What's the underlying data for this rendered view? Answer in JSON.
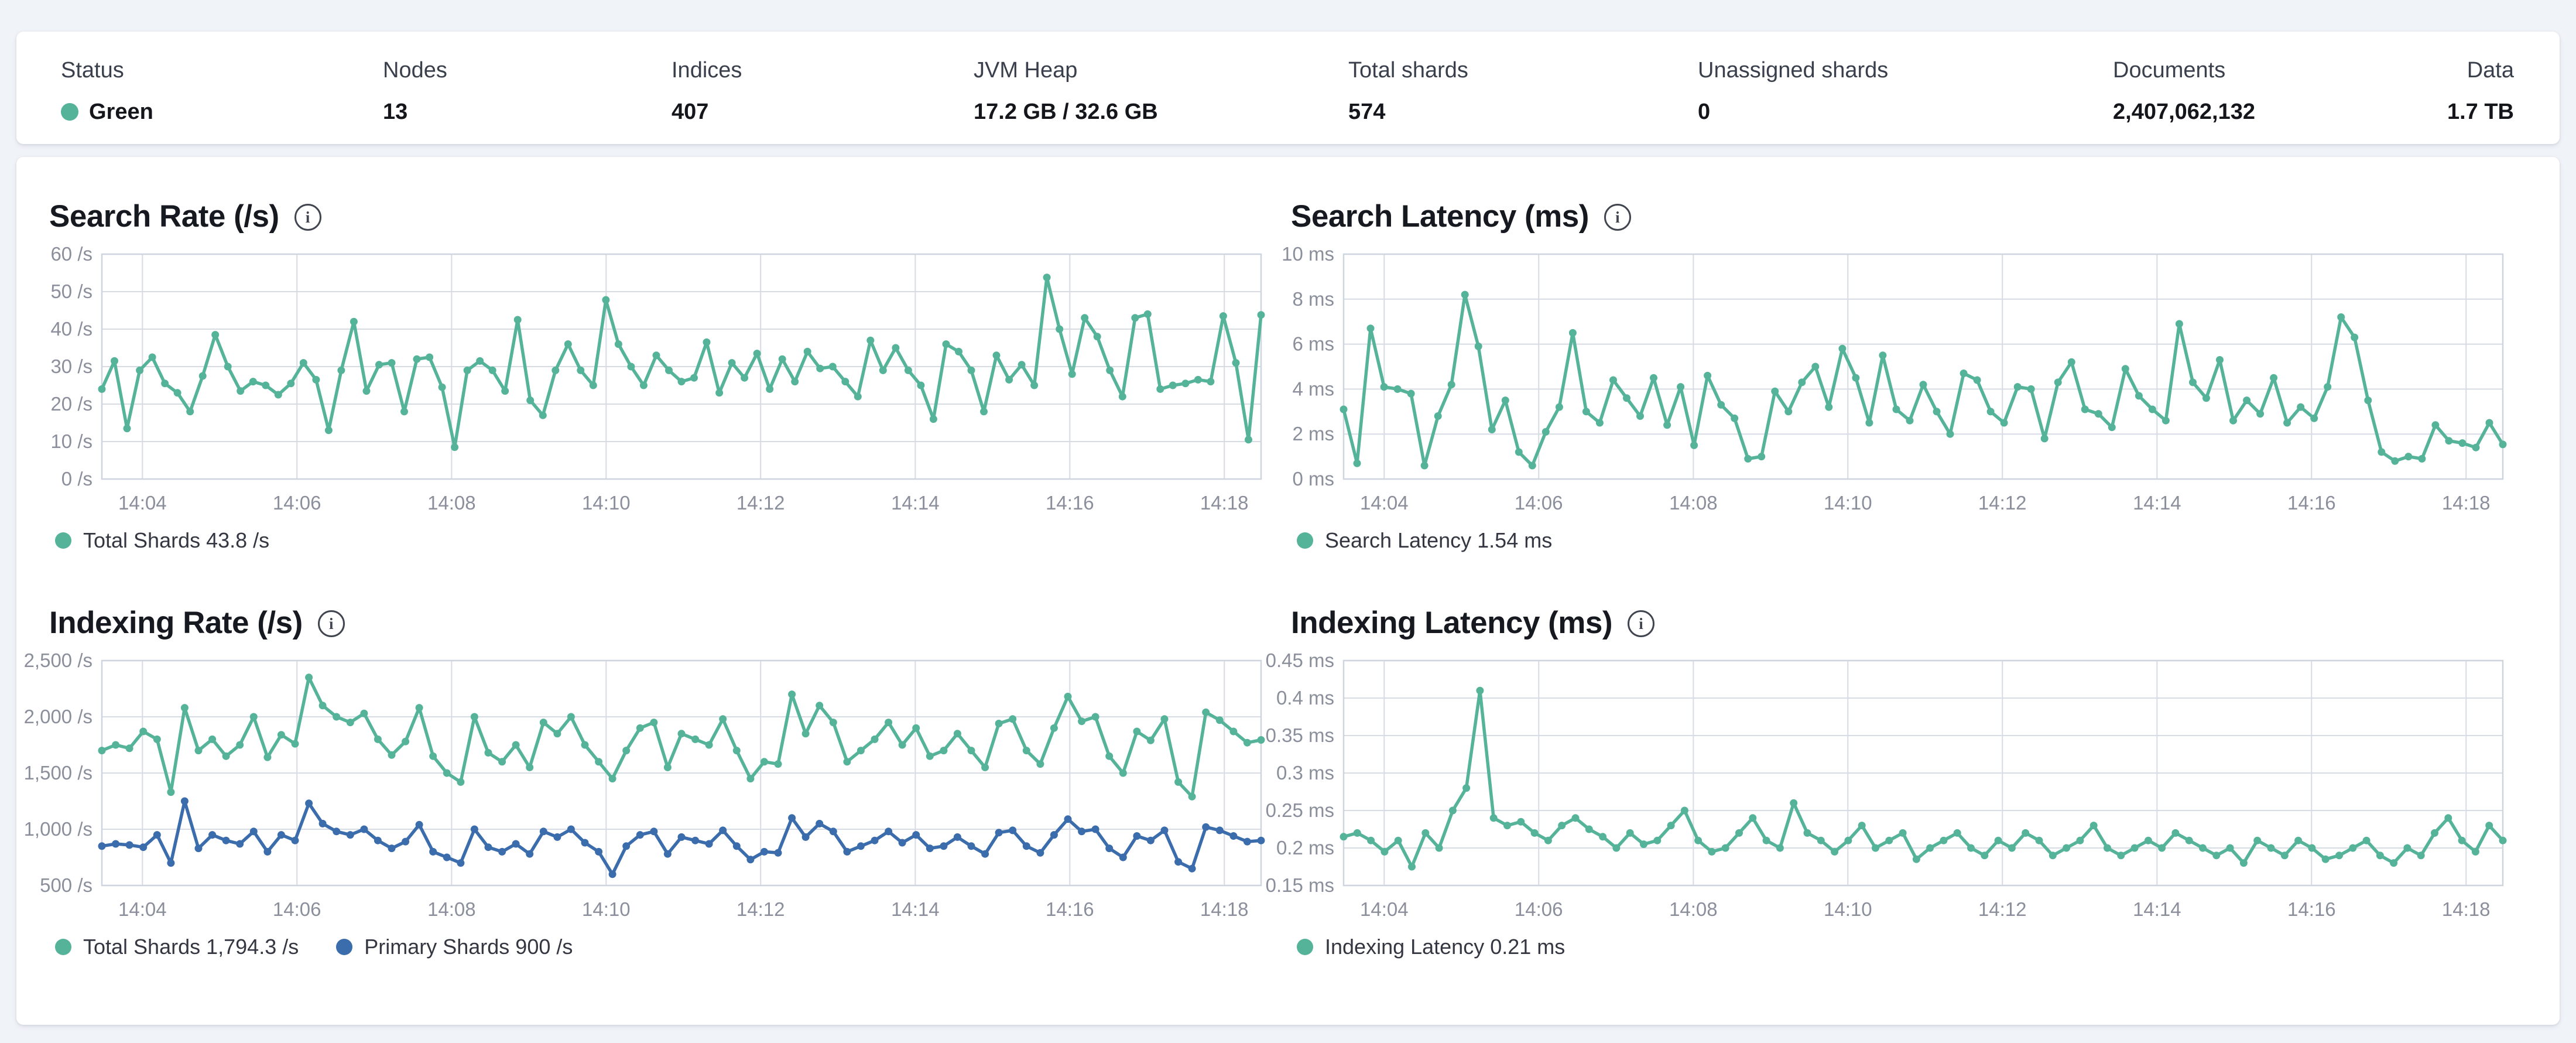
{
  "colors": {
    "health_green": "#54b399",
    "series_teal": "#54b399",
    "series_blue": "#3b6cac",
    "grid": "#d6dbe4",
    "page_background": "#f0f3f8"
  },
  "status_bar": {
    "items": [
      {
        "label": "Status",
        "value": "Green",
        "type": "health"
      },
      {
        "label": "Nodes",
        "value": "13"
      },
      {
        "label": "Indices",
        "value": "407"
      },
      {
        "label": "JVM Heap",
        "value": "17.2 GB / 32.6 GB"
      },
      {
        "label": "Total shards",
        "value": "574"
      },
      {
        "label": "Unassigned shards",
        "value": "0"
      },
      {
        "label": "Documents",
        "value": "2,407,062,132"
      },
      {
        "label": "Data",
        "value": "1.7 TB"
      }
    ]
  },
  "chart_data": [
    {
      "type": "line",
      "title": "Search Rate (/s)",
      "ylabel": "/s",
      "ylim": [
        0,
        60
      ],
      "grid": true,
      "legend_position": "bottom",
      "yticks": [
        {
          "v": 0,
          "label": "0 /s"
        },
        {
          "v": 10,
          "label": "10 /s"
        },
        {
          "v": 20,
          "label": "20 /s"
        },
        {
          "v": 30,
          "label": "30 /s"
        },
        {
          "v": 40,
          "label": "40 /s"
        },
        {
          "v": 50,
          "label": "50 /s"
        },
        {
          "v": 60,
          "label": "60 /s"
        }
      ],
      "xticks": [
        {
          "f": 0.035,
          "label": "14:04"
        },
        {
          "f": 0.1683,
          "label": "14:06"
        },
        {
          "f": 0.3017,
          "label": "14:08"
        },
        {
          "f": 0.435,
          "label": "14:10"
        },
        {
          "f": 0.5683,
          "label": "14:12"
        },
        {
          "f": 0.7017,
          "label": "14:14"
        },
        {
          "f": 0.835,
          "label": "14:16"
        },
        {
          "f": 0.9683,
          "label": "14:18"
        }
      ],
      "series": [
        {
          "name": "Total Shards",
          "legend": "Total Shards 43.8 /s",
          "color": "#54b399",
          "values": [
            24,
            31.5,
            13.5,
            29,
            32.5,
            25.5,
            23,
            18,
            27.5,
            38.5,
            30,
            23.5,
            26,
            25,
            22.5,
            25.5,
            31,
            26.5,
            13,
            29,
            42,
            23.5,
            30.5,
            31,
            18,
            32,
            32.5,
            24.5,
            8.5,
            29,
            31.5,
            29,
            23.5,
            42.5,
            21,
            17,
            29,
            36,
            29,
            25,
            47.8,
            36,
            30,
            25,
            33,
            29,
            26,
            27,
            36.5,
            23,
            31,
            27,
            33.5,
            24,
            32,
            26,
            34,
            29.5,
            30,
            26,
            22,
            37,
            29,
            35,
            29,
            25,
            16,
            36,
            34,
            29,
            18,
            33,
            26.5,
            30.5,
            25,
            53.8,
            40,
            28,
            43,
            38,
            29,
            22,
            43,
            44,
            24,
            25,
            25.5,
            26.5,
            26,
            43.5,
            31,
            10.5,
            43.8
          ]
        }
      ]
    },
    {
      "type": "line",
      "title": "Search Latency (ms)",
      "ylabel": "ms",
      "ylim": [
        0,
        10
      ],
      "grid": true,
      "legend_position": "bottom",
      "yticks": [
        {
          "v": 0,
          "label": "0 ms"
        },
        {
          "v": 2,
          "label": "2 ms"
        },
        {
          "v": 4,
          "label": "4 ms"
        },
        {
          "v": 6,
          "label": "6 ms"
        },
        {
          "v": 8,
          "label": "8 ms"
        },
        {
          "v": 10,
          "label": "10 ms"
        }
      ],
      "xticks": [
        {
          "f": 0.035,
          "label": "14:04"
        },
        {
          "f": 0.1683,
          "label": "14:06"
        },
        {
          "f": 0.3017,
          "label": "14:08"
        },
        {
          "f": 0.435,
          "label": "14:10"
        },
        {
          "f": 0.5683,
          "label": "14:12"
        },
        {
          "f": 0.7017,
          "label": "14:14"
        },
        {
          "f": 0.835,
          "label": "14:16"
        },
        {
          "f": 0.9683,
          "label": "14:18"
        }
      ],
      "series": [
        {
          "name": "Search Latency",
          "legend": "Search Latency 1.54 ms",
          "color": "#54b399",
          "values": [
            3.1,
            0.7,
            6.7,
            4.1,
            4.0,
            3.8,
            0.6,
            2.8,
            4.2,
            8.2,
            5.9,
            2.2,
            3.5,
            1.2,
            0.6,
            2.1,
            3.2,
            6.5,
            3.0,
            2.5,
            4.4,
            3.6,
            2.8,
            4.5,
            2.4,
            4.1,
            1.5,
            4.6,
            3.3,
            2.7,
            0.9,
            1.0,
            3.9,
            3.0,
            4.3,
            5.0,
            3.2,
            5.8,
            4.5,
            2.5,
            5.5,
            3.1,
            2.6,
            4.2,
            3.0,
            2.0,
            4.7,
            4.4,
            3.0,
            2.5,
            4.1,
            4.0,
            1.8,
            4.3,
            5.2,
            3.1,
            2.9,
            2.3,
            4.9,
            3.7,
            3.1,
            2.6,
            6.9,
            4.3,
            3.6,
            5.3,
            2.6,
            3.5,
            2.9,
            4.5,
            2.5,
            3.2,
            2.7,
            4.1,
            7.2,
            6.3,
            3.5,
            1.2,
            0.8,
            1.0,
            0.9,
            2.4,
            1.7,
            1.6,
            1.4,
            2.5,
            1.54
          ]
        }
      ]
    },
    {
      "type": "line",
      "title": "Indexing Rate (/s)",
      "ylabel": "/s",
      "ylim": [
        500,
        2500
      ],
      "grid": true,
      "legend_position": "bottom",
      "yticks": [
        {
          "v": 500,
          "label": "500 /s"
        },
        {
          "v": 1000,
          "label": "1,000 /s"
        },
        {
          "v": 1500,
          "label": "1,500 /s"
        },
        {
          "v": 2000,
          "label": "2,000 /s"
        },
        {
          "v": 2500,
          "label": "2,500 /s"
        }
      ],
      "xticks": [
        {
          "f": 0.035,
          "label": "14:04"
        },
        {
          "f": 0.1683,
          "label": "14:06"
        },
        {
          "f": 0.3017,
          "label": "14:08"
        },
        {
          "f": 0.435,
          "label": "14:10"
        },
        {
          "f": 0.5683,
          "label": "14:12"
        },
        {
          "f": 0.7017,
          "label": "14:14"
        },
        {
          "f": 0.835,
          "label": "14:16"
        },
        {
          "f": 0.9683,
          "label": "14:18"
        }
      ],
      "series": [
        {
          "name": "Total Shards",
          "legend": "Total Shards 1,794.3 /s",
          "color": "#54b399",
          "values": [
            1700,
            1750,
            1720,
            1870,
            1800,
            1330,
            2080,
            1700,
            1800,
            1650,
            1750,
            2000,
            1640,
            1840,
            1760,
            2350,
            2100,
            2000,
            1950,
            2030,
            1800,
            1660,
            1780,
            2080,
            1650,
            1500,
            1420,
            2000,
            1680,
            1600,
            1750,
            1550,
            1950,
            1850,
            2000,
            1750,
            1600,
            1450,
            1700,
            1900,
            1950,
            1550,
            1850,
            1800,
            1750,
            1980,
            1700,
            1450,
            1600,
            1580,
            2200,
            1850,
            2100,
            1950,
            1600,
            1700,
            1800,
            1950,
            1750,
            1900,
            1650,
            1700,
            1850,
            1700,
            1550,
            1940,
            1980,
            1700,
            1580,
            1900,
            2180,
            1960,
            2000,
            1650,
            1500,
            1870,
            1790,
            1980,
            1420,
            1290,
            2040,
            1970,
            1870,
            1770,
            1794.3
          ]
        },
        {
          "name": "Primary Shards",
          "legend": "Primary Shards 900 /s",
          "color": "#3b6cac",
          "values": [
            850,
            870,
            860,
            840,
            950,
            700,
            1250,
            830,
            950,
            900,
            870,
            980,
            800,
            950,
            900,
            1230,
            1050,
            980,
            950,
            1000,
            900,
            830,
            890,
            1040,
            800,
            750,
            700,
            1000,
            840,
            800,
            870,
            780,
            980,
            930,
            1000,
            880,
            800,
            600,
            850,
            950,
            980,
            780,
            930,
            900,
            870,
            990,
            850,
            730,
            800,
            790,
            1100,
            930,
            1050,
            980,
            800,
            850,
            900,
            980,
            880,
            950,
            830,
            850,
            930,
            850,
            780,
            970,
            990,
            850,
            790,
            950,
            1090,
            980,
            1000,
            830,
            750,
            940,
            900,
            990,
            710,
            650,
            1020,
            990,
            940,
            890,
            900
          ]
        }
      ]
    },
    {
      "type": "line",
      "title": "Indexing Latency (ms)",
      "ylabel": "ms",
      "ylim": [
        0.15,
        0.45
      ],
      "grid": true,
      "legend_position": "bottom",
      "yticks": [
        {
          "v": 0.15,
          "label": "0.15 ms"
        },
        {
          "v": 0.2,
          "label": "0.2 ms"
        },
        {
          "v": 0.25,
          "label": "0.25 ms"
        },
        {
          "v": 0.3,
          "label": "0.3 ms"
        },
        {
          "v": 0.35,
          "label": "0.35 ms"
        },
        {
          "v": 0.4,
          "label": "0.4 ms"
        },
        {
          "v": 0.45,
          "label": "0.45 ms"
        }
      ],
      "xticks": [
        {
          "f": 0.035,
          "label": "14:04"
        },
        {
          "f": 0.1683,
          "label": "14:06"
        },
        {
          "f": 0.3017,
          "label": "14:08"
        },
        {
          "f": 0.435,
          "label": "14:10"
        },
        {
          "f": 0.5683,
          "label": "14:12"
        },
        {
          "f": 0.7017,
          "label": "14:14"
        },
        {
          "f": 0.835,
          "label": "14:16"
        },
        {
          "f": 0.9683,
          "label": "14:18"
        }
      ],
      "series": [
        {
          "name": "Indexing Latency",
          "legend": "Indexing Latency 0.21 ms",
          "color": "#54b399",
          "values": [
            0.215,
            0.22,
            0.21,
            0.195,
            0.21,
            0.175,
            0.22,
            0.2,
            0.25,
            0.28,
            0.41,
            0.24,
            0.23,
            0.235,
            0.22,
            0.21,
            0.23,
            0.24,
            0.225,
            0.215,
            0.2,
            0.22,
            0.205,
            0.21,
            0.23,
            0.25,
            0.21,
            0.195,
            0.2,
            0.22,
            0.24,
            0.21,
            0.2,
            0.26,
            0.22,
            0.21,
            0.195,
            0.21,
            0.23,
            0.2,
            0.21,
            0.22,
            0.185,
            0.2,
            0.21,
            0.22,
            0.2,
            0.19,
            0.21,
            0.2,
            0.22,
            0.21,
            0.19,
            0.2,
            0.21,
            0.23,
            0.2,
            0.19,
            0.2,
            0.21,
            0.2,
            0.22,
            0.21,
            0.2,
            0.19,
            0.2,
            0.18,
            0.21,
            0.2,
            0.19,
            0.21,
            0.2,
            0.185,
            0.19,
            0.2,
            0.21,
            0.19,
            0.18,
            0.2,
            0.19,
            0.22,
            0.24,
            0.21,
            0.195,
            0.23,
            0.21
          ]
        }
      ]
    }
  ]
}
